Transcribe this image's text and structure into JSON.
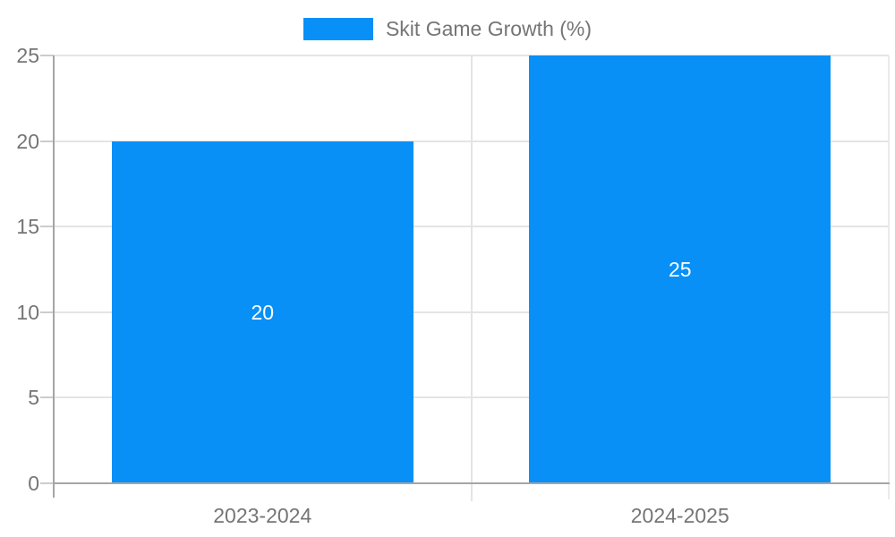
{
  "chart_data": {
    "type": "bar",
    "title": "Skit Game Growth (%)",
    "legend": [
      {
        "label": "Skit Game Growth (%)",
        "color": "#0890f7"
      }
    ],
    "legend_position": "top-center",
    "categories": [
      "2023-2024",
      "2024-2025"
    ],
    "values": [
      20,
      25
    ],
    "value_labels": [
      "20",
      "25"
    ],
    "value_label_placement": "inside-center",
    "xlabel": "",
    "ylabel": "",
    "y_ticks": [
      "0",
      "5",
      "10",
      "15",
      "20",
      "25"
    ],
    "y_tick_values": [
      0,
      5,
      10,
      15,
      20,
      25
    ],
    "ylim": [
      0,
      25
    ],
    "grid": true,
    "colors": {
      "bar": "#0890f7",
      "axis_line": "#a5a5a5",
      "gridline": "#e4e4e4",
      "tick_mark": "#cccccc",
      "text": "#757575",
      "value_text": "#ffffff",
      "background": "#ffffff"
    }
  }
}
